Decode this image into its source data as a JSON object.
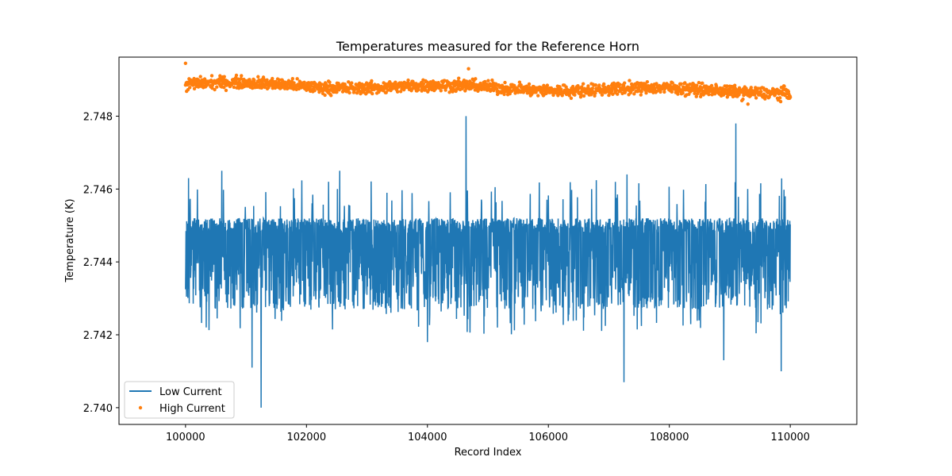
{
  "chart_data": {
    "type": "line",
    "title": "Temperatures measured for the Reference Horn",
    "xlabel": "Record Index",
    "ylabel": "Temperature (K)",
    "xlim": [
      98900,
      111100
    ],
    "ylim": [
      2.73954,
      2.74962
    ],
    "x_ticks": [
      100000,
      102000,
      104000,
      106000,
      108000,
      110000
    ],
    "y_ticks": [
      2.74,
      2.742,
      2.744,
      2.746,
      2.748
    ],
    "y_tick_labels": [
      "2.740",
      "2.742",
      "2.744",
      "2.746",
      "2.748"
    ],
    "grid": false,
    "legend_position": "lower-left",
    "series": [
      {
        "name": "Low Current",
        "style": "line",
        "color": "#1f77b4",
        "x_range": [
          100000,
          110000
        ],
        "baseline": 2.7443,
        "band": [
          2.7427,
          2.7452
        ],
        "spikes_up": [
          [
            100050,
            2.7463
          ],
          [
            100600,
            2.7465
          ],
          [
            101100,
            2.7465
          ],
          [
            102550,
            2.7465
          ],
          [
            104640,
            2.748
          ],
          [
            107300,
            2.7464
          ],
          [
            109100,
            2.7478
          ],
          [
            109850,
            2.7466
          ]
        ],
        "spikes_down": [
          [
            101100,
            2.7411
          ],
          [
            101250,
            2.74
          ],
          [
            104000,
            2.7418
          ],
          [
            107250,
            2.7407
          ],
          [
            108900,
            2.7413
          ],
          [
            109850,
            2.741
          ]
        ]
      },
      {
        "name": "High Current",
        "style": "scatter",
        "color": "#ff7f0e",
        "x_range": [
          100000,
          110000
        ],
        "baseline_start": 2.74888,
        "baseline_end": 2.74868,
        "band": [
          2.7485,
          2.7491
        ],
        "outliers_up": [
          [
            100000,
            2.74945
          ],
          [
            104680,
            2.7493
          ]
        ],
        "outliers_down": [
          [
            109300,
            2.74833
          ]
        ]
      }
    ]
  }
}
